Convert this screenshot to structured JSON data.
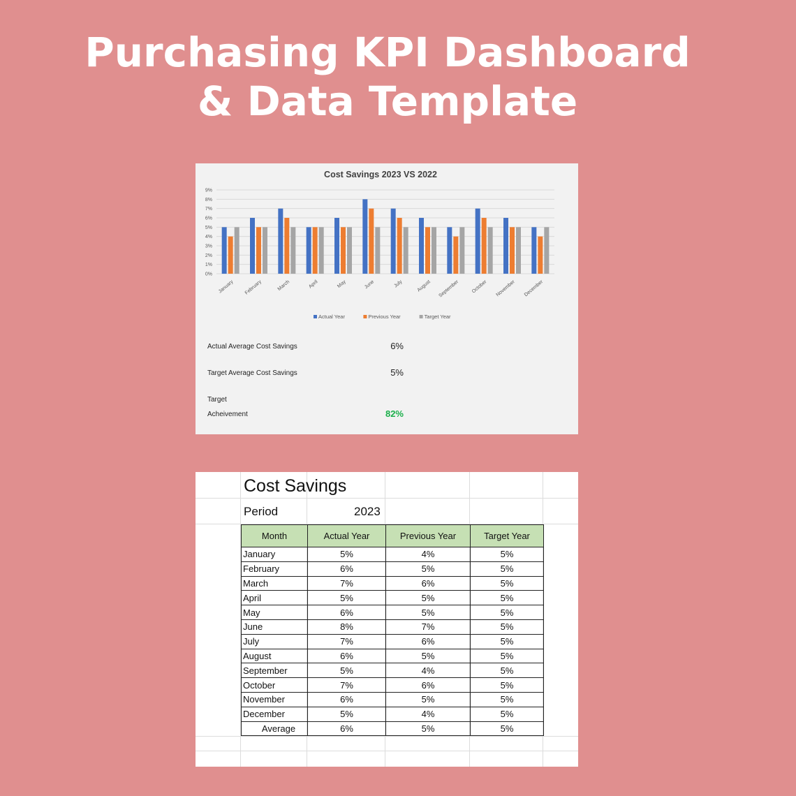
{
  "page": {
    "title_line1": "Purchasing KPI Dashboard",
    "title_line2": "& Data Template"
  },
  "chart_data": {
    "type": "bar",
    "title": "Cost Savings 2023 VS 2022",
    "categories": [
      "January",
      "February",
      "March",
      "April",
      "May",
      "June",
      "July",
      "August",
      "September",
      "October",
      "November",
      "December"
    ],
    "series": [
      {
        "name": "Actual Year",
        "color": "#4472c4",
        "values": [
          5,
          6,
          7,
          5,
          6,
          8,
          7,
          6,
          5,
          7,
          6,
          5
        ]
      },
      {
        "name": "Previous Year",
        "color": "#ed7d31",
        "values": [
          4,
          5,
          6,
          5,
          5,
          7,
          6,
          5,
          4,
          6,
          5,
          4
        ]
      },
      {
        "name": "Target Year",
        "color": "#a5a5a5",
        "values": [
          5,
          5,
          5,
          5,
          5,
          5,
          5,
          5,
          5,
          5,
          5,
          5
        ]
      }
    ],
    "yticks": [
      "0%",
      "1%",
      "2%",
      "3%",
      "4%",
      "5%",
      "6%",
      "7%",
      "8%",
      "9%"
    ],
    "ylim": [
      0,
      9
    ],
    "grid": true,
    "legend": "bottom"
  },
  "kpis": {
    "actual_avg_label": "Actual Average Cost Savings",
    "actual_avg_value": "6%",
    "target_avg_label": "Target Average Cost Savings",
    "target_avg_value": "5%",
    "achievement_label_1": "Target",
    "achievement_label_2": "Acheivement",
    "achievement_value": "82%"
  },
  "sheet": {
    "title": "Cost Savings",
    "period_label": "Period",
    "period_value": "2023",
    "headers": [
      "Month",
      "Actual Year",
      "Previous Year",
      "Target Year"
    ],
    "rows": [
      [
        "January",
        "5%",
        "4%",
        "5%"
      ],
      [
        "February",
        "6%",
        "5%",
        "5%"
      ],
      [
        "March",
        "7%",
        "6%",
        "5%"
      ],
      [
        "April",
        "5%",
        "5%",
        "5%"
      ],
      [
        "May",
        "6%",
        "5%",
        "5%"
      ],
      [
        "June",
        "8%",
        "7%",
        "5%"
      ],
      [
        "July",
        "7%",
        "6%",
        "5%"
      ],
      [
        "August",
        "6%",
        "5%",
        "5%"
      ],
      [
        "September",
        "5%",
        "4%",
        "5%"
      ],
      [
        "October",
        "7%",
        "6%",
        "5%"
      ],
      [
        "November",
        "6%",
        "5%",
        "5%"
      ],
      [
        "December",
        "5%",
        "4%",
        "5%"
      ]
    ],
    "average": [
      "Average",
      "6%",
      "5%",
      "5%"
    ]
  }
}
